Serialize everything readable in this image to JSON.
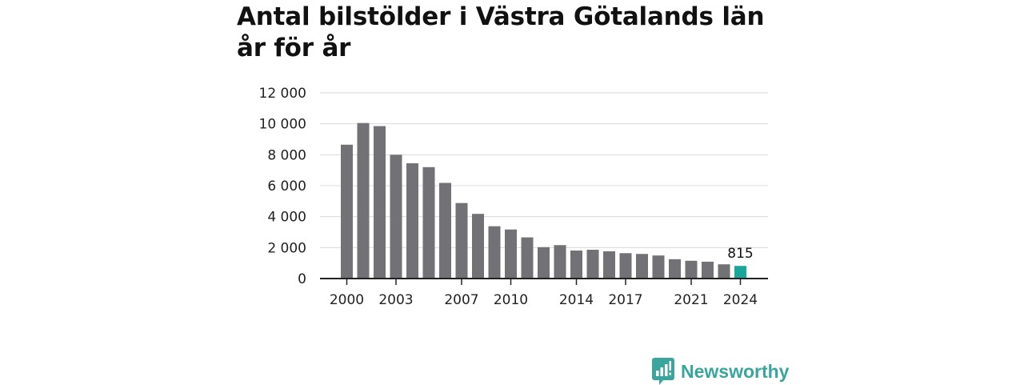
{
  "header": {
    "title": "Antal bilstölder i Västra Götalands län år för år"
  },
  "brand": {
    "name": "Newsworthy",
    "logo_icon": "bar-chart-speech-bubble-icon"
  },
  "colors": {
    "bar": "#727176",
    "highlight": "#1aa69a",
    "grid": "#d9d9d9",
    "axis": "#222222",
    "brand": "#3aa59c"
  },
  "chart_data": {
    "type": "bar",
    "title": "Antal bilstölder i Västra Götalands län år för år",
    "xlabel": "",
    "ylabel": "",
    "categories": [
      "2000",
      "2001",
      "2002",
      "2003",
      "2004",
      "2005",
      "2006",
      "2007",
      "2008",
      "2009",
      "2010",
      "2011",
      "2012",
      "2013",
      "2014",
      "2015",
      "2016",
      "2017",
      "2018",
      "2019",
      "2020",
      "2021",
      "2022",
      "2023",
      "2024"
    ],
    "values": [
      8650,
      10050,
      9850,
      8000,
      7450,
      7200,
      6180,
      4880,
      4180,
      3380,
      3170,
      2660,
      2030,
      2160,
      1810,
      1860,
      1760,
      1640,
      1590,
      1490,
      1250,
      1150,
      1090,
      920,
      815
    ],
    "ylim": [
      0,
      12000
    ],
    "yticks": [
      0,
      2000,
      4000,
      6000,
      8000,
      10000,
      12000
    ],
    "ytick_labels": [
      "0",
      "2 000",
      "4 000",
      "6 000",
      "8 000",
      "10 000",
      "12 000"
    ],
    "xticks": [
      "2000",
      "2003",
      "2007",
      "2010",
      "2014",
      "2017",
      "2021",
      "2024"
    ],
    "highlight_category": "2024",
    "annotation": {
      "category": "2024",
      "text": "815"
    },
    "grid": true
  }
}
